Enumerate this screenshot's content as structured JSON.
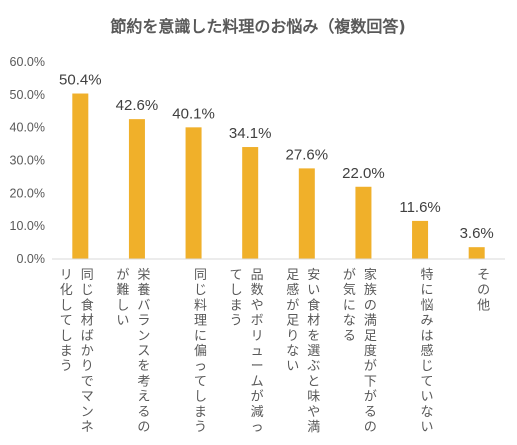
{
  "chart_data": {
    "type": "bar",
    "title": "節約を意識した料理のお悩み（複数回答)",
    "categories": [
      "同じ食材ばかりでマンネリ化してしまう",
      "栄養バランスを考えるのが難しい",
      "同じ料理に偏ってしまう",
      "品数やボリュームが減ってしまう",
      "安い食材を選ぶと味や満足感が足りない",
      "家族の満足度が下がるのが気になる",
      "特に悩みは感じていない",
      "その他"
    ],
    "values": [
      50.4,
      42.6,
      40.1,
      34.1,
      27.6,
      22.0,
      11.6,
      3.6
    ],
    "value_labels": [
      "50.4%",
      "42.6%",
      "40.1%",
      "34.1%",
      "27.6%",
      "22.0%",
      "11.6%",
      "3.6%"
    ],
    "y_ticks": [
      "0.0%",
      "10.0%",
      "20.0%",
      "30.0%",
      "40.0%",
      "50.0%",
      "60.0%"
    ],
    "ylim": [
      0,
      60
    ],
    "bar_color": "#F0B02A",
    "grid": false,
    "legend": "none",
    "xlabel": "",
    "ylabel": ""
  }
}
